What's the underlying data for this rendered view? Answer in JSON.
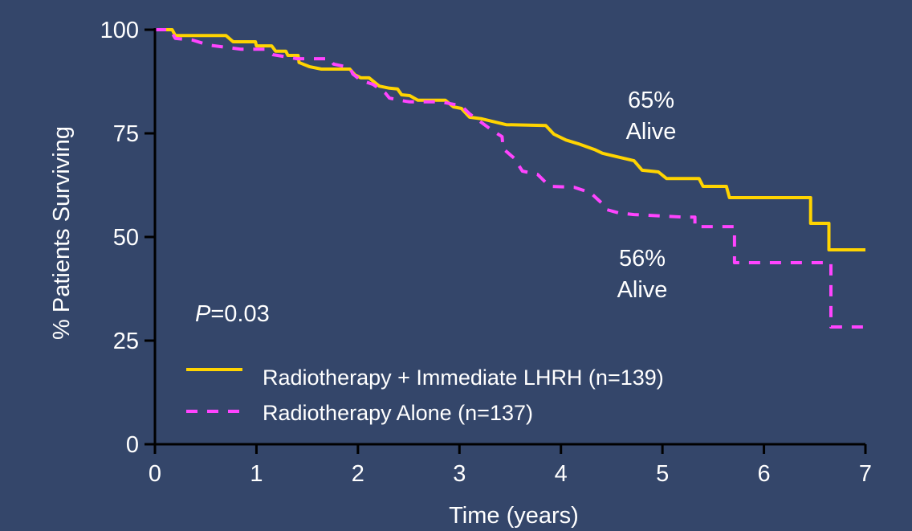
{
  "chart_data": {
    "type": "line",
    "title": "",
    "xlabel": "Time (years)",
    "ylabel": "% Patients Surviving",
    "xlim": [
      0,
      7
    ],
    "ylim": [
      0,
      100
    ],
    "xticks": [
      "0",
      "1",
      "2",
      "3",
      "4",
      "5",
      "6",
      "7"
    ],
    "yticks": [
      "0",
      "25",
      "50",
      "75",
      "100"
    ],
    "grid": false,
    "legend_placement": "bottom-left",
    "p_value": {
      "prefix": "P",
      "text": "=0.03"
    },
    "annotations": [
      {
        "line1": "65%",
        "line2": "Alive"
      },
      {
        "line1": "56%",
        "line2": "Alive"
      }
    ],
    "series": [
      {
        "name": "Radiotherapy + Immediate LHRH (n=139)",
        "color": "#ffd400",
        "dashed": false,
        "points": [
          [
            0,
            100
          ],
          [
            0.17,
            100
          ],
          [
            0.2,
            98.6
          ],
          [
            0.7,
            98.6
          ],
          [
            0.77,
            97.1
          ],
          [
            0.99,
            97.1
          ],
          [
            1.0,
            96.1
          ],
          [
            1.15,
            96.1
          ],
          [
            1.19,
            94.8
          ],
          [
            1.29,
            94.8
          ],
          [
            1.31,
            93.8
          ],
          [
            1.41,
            93.8
          ],
          [
            1.42,
            92.1
          ],
          [
            1.52,
            91.1
          ],
          [
            1.64,
            90.5
          ],
          [
            1.92,
            90.5
          ],
          [
            1.97,
            89.1
          ],
          [
            2.03,
            88.4
          ],
          [
            2.11,
            88.4
          ],
          [
            2.21,
            86.4
          ],
          [
            2.31,
            85.9
          ],
          [
            2.39,
            85.7
          ],
          [
            2.43,
            84.3
          ],
          [
            2.51,
            84.1
          ],
          [
            2.59,
            83.0
          ],
          [
            2.86,
            83.0
          ],
          [
            2.94,
            81.4
          ],
          [
            3.02,
            81.0
          ],
          [
            3.1,
            78.9
          ],
          [
            3.22,
            78.5
          ],
          [
            3.46,
            77.1
          ],
          [
            3.85,
            76.9
          ],
          [
            3.93,
            74.8
          ],
          [
            4.05,
            73.4
          ],
          [
            4.17,
            72.5
          ],
          [
            4.33,
            71.1
          ],
          [
            4.41,
            70.2
          ],
          [
            4.72,
            68.4
          ],
          [
            4.8,
            66.1
          ],
          [
            4.96,
            65.7
          ],
          [
            5.04,
            64.1
          ],
          [
            5.36,
            64.1
          ],
          [
            5.4,
            62.2
          ],
          [
            5.63,
            62.2
          ],
          [
            5.66,
            59.5
          ],
          [
            6.46,
            59.5
          ],
          [
            6.46,
            53.3
          ],
          [
            6.64,
            53.3
          ],
          [
            6.64,
            46.9
          ],
          [
            7.0,
            46.9
          ]
        ]
      },
      {
        "name": "Radiotherapy Alone (n=137)",
        "color": "#ff44ff",
        "dashed": true,
        "points": [
          [
            0,
            100
          ],
          [
            0.15,
            100
          ],
          [
            0.2,
            97.9
          ],
          [
            0.37,
            97.5
          ],
          [
            0.53,
            96.3
          ],
          [
            0.85,
            95.3
          ],
          [
            1.08,
            95.3
          ],
          [
            1.16,
            94.0
          ],
          [
            1.4,
            93.0
          ],
          [
            1.72,
            93.0
          ],
          [
            1.76,
            91.7
          ],
          [
            1.92,
            90.9
          ],
          [
            1.95,
            89.3
          ],
          [
            2.03,
            87.8
          ],
          [
            2.15,
            86.8
          ],
          [
            2.27,
            84.7
          ],
          [
            2.31,
            83.5
          ],
          [
            2.43,
            82.9
          ],
          [
            2.51,
            82.6
          ],
          [
            2.82,
            82.6
          ],
          [
            2.9,
            82.2
          ],
          [
            3.02,
            81.6
          ],
          [
            3.1,
            79.7
          ],
          [
            3.34,
            75.4
          ],
          [
            3.42,
            74.2
          ],
          [
            3.43,
            71.3
          ],
          [
            3.54,
            69.0
          ],
          [
            3.62,
            65.9
          ],
          [
            3.77,
            65.1
          ],
          [
            3.89,
            62.2
          ],
          [
            4.13,
            62.0
          ],
          [
            4.29,
            60.7
          ],
          [
            4.41,
            58.0
          ],
          [
            4.45,
            56.6
          ],
          [
            4.57,
            55.8
          ],
          [
            4.72,
            55.4
          ],
          [
            5.2,
            54.8
          ],
          [
            5.32,
            54.8
          ],
          [
            5.32,
            52.5
          ],
          [
            5.71,
            52.5
          ],
          [
            5.71,
            43.8
          ],
          [
            6.66,
            43.8
          ],
          [
            6.66,
            28.3
          ],
          [
            7.0,
            28.3
          ]
        ]
      }
    ]
  }
}
